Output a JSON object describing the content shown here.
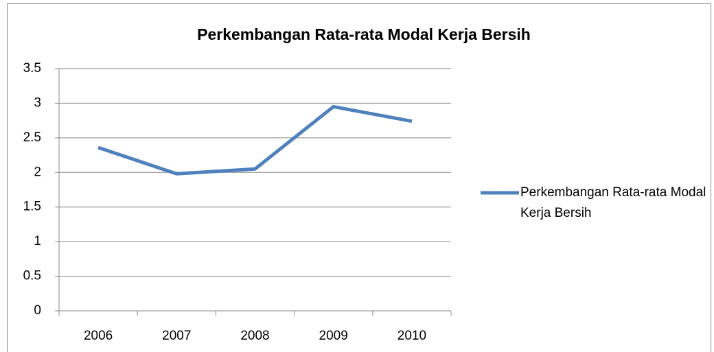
{
  "chart_data": {
    "type": "line",
    "title": "Perkembangan Rata-rata Modal Kerja Bersih",
    "categories": [
      "2006",
      "2007",
      "2008",
      "2009",
      "2010"
    ],
    "series": [
      {
        "name": "Perkembangan Rata-rata Modal Kerja Bersih",
        "color": "#4f81bd",
        "values": [
          2.36,
          1.98,
          2.05,
          2.95,
          2.74
        ]
      }
    ],
    "ylim": [
      0,
      3.5
    ],
    "yticks": [
      0,
      0.5,
      1,
      1.5,
      2,
      2.5,
      3,
      3.5
    ],
    "grid": true,
    "legend": "right"
  }
}
